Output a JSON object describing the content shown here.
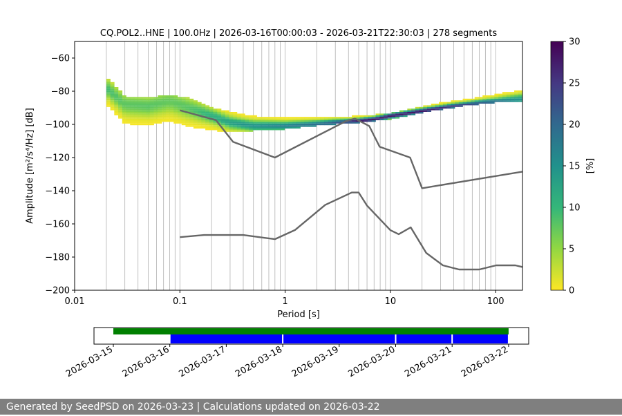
{
  "chart_data": {
    "type": "heatmap",
    "title": "CQ.POL2..HNE | 100.0Hz | 2026-03-16T00:00:03 - 2026-03-21T22:30:03 | 278 segments",
    "xlabel": "Period [s]",
    "ylabel": "Amplitude [m²/s⁴/Hz] [dB]",
    "xscale": "log",
    "xlim": [
      0.01,
      180
    ],
    "ylim": [
      -200,
      -50
    ],
    "x_tick_labels": [
      "0.01",
      "0.1",
      "1",
      "10",
      "100"
    ],
    "x_ticks": [
      0.01,
      0.1,
      1,
      10,
      100
    ],
    "y_ticks": [
      -60,
      -80,
      -100,
      -120,
      -140,
      -160,
      -180,
      -200
    ],
    "y_tick_labels": [
      "−60",
      "−80",
      "−100",
      "−120",
      "−140",
      "−160",
      "−180",
      "−200"
    ],
    "grid": "x-minor-vertical",
    "colorbar": {
      "label": "[%]",
      "min": 0,
      "max": 30,
      "ticks": [
        "0",
        "5",
        "10",
        "15",
        "20",
        "25",
        "30"
      ],
      "colormap": "viridis_r"
    },
    "psd_mode": [
      [
        0.02,
        -78
      ],
      [
        0.03,
        -88
      ],
      [
        0.05,
        -89
      ],
      [
        0.08,
        -86
      ],
      [
        0.12,
        -90
      ],
      [
        0.2,
        -95
      ],
      [
        0.3,
        -99
      ],
      [
        0.5,
        -101
      ],
      [
        1,
        -101
      ],
      [
        2,
        -100
      ],
      [
        3,
        -99
      ],
      [
        5,
        -98
      ],
      [
        7,
        -97
      ],
      [
        10,
        -95
      ],
      [
        20,
        -92
      ],
      [
        40,
        -89
      ],
      [
        80,
        -87
      ],
      [
        180,
        -85
      ]
    ],
    "psd_lower_edge": [
      [
        0.02,
        -88
      ],
      [
        0.03,
        -104
      ],
      [
        0.1,
        -104
      ],
      [
        0.2,
        -104
      ],
      [
        0.5,
        -104
      ],
      [
        1,
        -103
      ],
      [
        2,
        -101
      ],
      [
        3,
        -100
      ],
      [
        5,
        -99
      ],
      [
        10,
        -97
      ],
      [
        20,
        -93
      ],
      [
        50,
        -89
      ],
      [
        100,
        -87
      ],
      [
        180,
        -86
      ]
    ],
    "psd_upper_edge": [
      [
        0.02,
        -71
      ],
      [
        0.03,
        -83
      ],
      [
        0.05,
        -84
      ],
      [
        0.08,
        -82
      ],
      [
        0.12,
        -84
      ],
      [
        0.2,
        -90
      ],
      [
        0.4,
        -94
      ],
      [
        1,
        -95
      ],
      [
        2,
        -94
      ],
      [
        3,
        -94
      ],
      [
        5,
        -95
      ],
      [
        10,
        -93
      ],
      [
        20,
        -89
      ],
      [
        50,
        -84
      ],
      [
        100,
        -80
      ],
      [
        180,
        -76
      ]
    ],
    "nhnm": [
      [
        0.1,
        -91.5
      ],
      [
        0.22,
        -97.4
      ],
      [
        0.32,
        -110.5
      ],
      [
        0.8,
        -120
      ],
      [
        3.8,
        -98
      ],
      [
        4.6,
        -96.5
      ],
      [
        6.3,
        -101
      ],
      [
        7.9,
        -113.5
      ],
      [
        15.4,
        -120
      ],
      [
        20,
        -138.5
      ],
      [
        180,
        -128.5
      ]
    ],
    "nlnm": [
      [
        0.1,
        -168
      ],
      [
        0.17,
        -166.7
      ],
      [
        0.4,
        -166.7
      ],
      [
        0.8,
        -169.2
      ],
      [
        1.24,
        -163.7
      ],
      [
        2.4,
        -148.6
      ],
      [
        4.3,
        -141.1
      ],
      [
        5,
        -141.1
      ],
      [
        6,
        -149
      ],
      [
        10,
        -163.8
      ],
      [
        12,
        -166.2
      ],
      [
        15.6,
        -162.1
      ],
      [
        21.9,
        -177.5
      ],
      [
        31.6,
        -185
      ],
      [
        45,
        -187.5
      ],
      [
        70,
        -187.5
      ],
      [
        101,
        -185
      ],
      [
        154,
        -185
      ],
      [
        180,
        -186
      ]
    ],
    "timeline": {
      "tick_labels": [
        "2026-03-15",
        "2026-03-16",
        "2026-03-17",
        "2026-03-18",
        "2026-03-19",
        "2026-03-20",
        "2026-03-21",
        "2026-03-22"
      ],
      "data_available": [
        "2026-03-15",
        "2026-03-22"
      ],
      "psd_segments": [
        [
          "2026-03-16",
          "2026-03-18"
        ],
        [
          "2026-03-18",
          "2026-03-20"
        ],
        [
          "2026-03-20",
          "2026-03-21"
        ],
        [
          "2026-03-21",
          "2026-03-22"
        ]
      ],
      "colors": {
        "available": "#008000",
        "segments": "#0000ff"
      }
    },
    "colors": {
      "noise_models": "#666666",
      "grid": "#b0b0b0"
    }
  },
  "footer": {
    "text": "Generated by SeedPSD on 2026-03-23 | Calculations updated on 2026-03-22"
  }
}
